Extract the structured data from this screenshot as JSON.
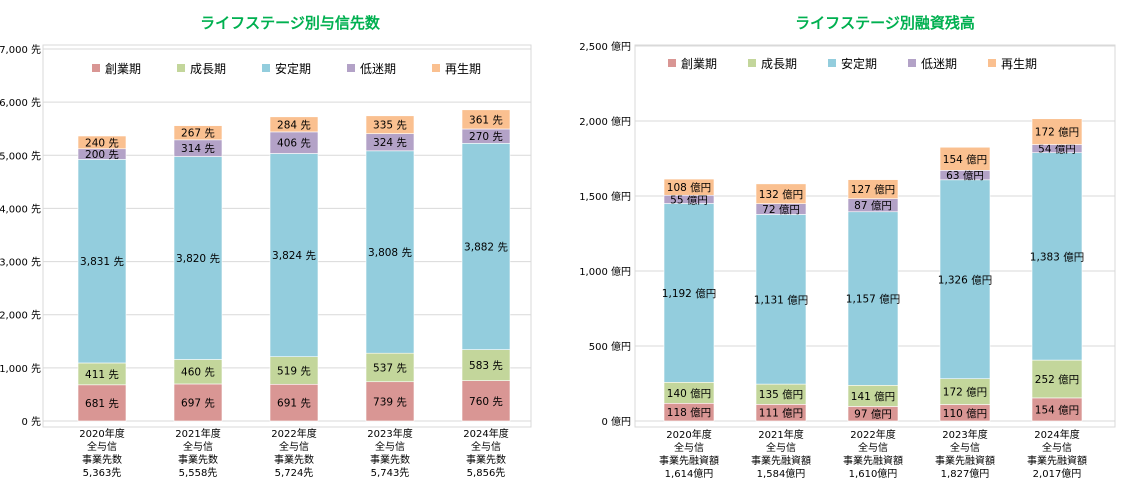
{
  "colors": {
    "start": "#D99694",
    "growth": "#C3D69B",
    "stable": "#93CDDD",
    "decline": "#B3A2C7",
    "regen": "#FAC090",
    "title": "#00B050",
    "grid": "#D9D9D9",
    "frame": "#D9D9D9",
    "text": "#000000"
  },
  "chart_data": [
    {
      "type": "bar",
      "stacked": true,
      "title": "ライフステージ別与信先数",
      "categories": [
        [
          "2020年度",
          "全与信",
          "事業先数",
          "5,363先"
        ],
        [
          "2021年度",
          "全与信",
          "事業先数",
          "5,558先"
        ],
        [
          "2022年度",
          "全与信",
          "事業先数",
          "5,724先"
        ],
        [
          "2023年度",
          "全与信",
          "事業先数",
          "5,743先"
        ],
        [
          "2024年度",
          "全与信",
          "事業先数",
          "5,856先"
        ]
      ],
      "series": [
        {
          "name": "創業期",
          "color_key": "start",
          "values": [
            681,
            697,
            691,
            739,
            760
          ],
          "labels": [
            "681 先",
            "697 先",
            "691 先",
            "739 先",
            "760 先"
          ]
        },
        {
          "name": "成長期",
          "color_key": "growth",
          "values": [
            411,
            460,
            519,
            537,
            583
          ],
          "labels": [
            "411 先",
            "460 先",
            "519 先",
            "537 先",
            "583 先"
          ]
        },
        {
          "name": "安定期",
          "color_key": "stable",
          "values": [
            3831,
            3820,
            3824,
            3808,
            3882
          ],
          "labels": [
            "3,831 先",
            "3,820 先",
            "3,824 先",
            "3,808 先",
            "3,882 先"
          ]
        },
        {
          "name": "低迷期",
          "color_key": "decline",
          "values": [
            200,
            314,
            406,
            324,
            270
          ],
          "labels": [
            "200 先",
            "314 先",
            "406 先",
            "324 先",
            "270 先"
          ]
        },
        {
          "name": "再生期",
          "color_key": "regen",
          "values": [
            240,
            267,
            284,
            335,
            361
          ],
          "labels": [
            "240 先",
            "267 先",
            "284 先",
            "335 先",
            "361 先"
          ]
        }
      ],
      "ylim": [
        0,
        7000
      ],
      "yticks": [
        0,
        1000,
        2000,
        3000,
        4000,
        5000,
        6000,
        7000
      ],
      "ytick_labels": [
        "0 先",
        "1,000 先",
        "2,000 先",
        "3,000 先",
        "4,000 先",
        "5,000 先",
        "6,000 先",
        "7,000 先"
      ],
      "grid": true,
      "legend_position": "top"
    },
    {
      "type": "bar",
      "stacked": true,
      "title": "ライフステージ別融資残高",
      "categories": [
        [
          "2020年度",
          "全与信",
          "事業先融資額",
          "1,614億円"
        ],
        [
          "2021年度",
          "全与信",
          "事業先融資額",
          "1,584億円"
        ],
        [
          "2022年度",
          "全与信",
          "事業先融資額",
          "1,610億円"
        ],
        [
          "2023年度",
          "全与信",
          "事業先融資額",
          "1,827億円"
        ],
        [
          "2024年度",
          "全与信",
          "事業先融資額",
          "2,017億円"
        ]
      ],
      "series": [
        {
          "name": "創業期",
          "color_key": "start",
          "values": [
            118,
            111,
            97,
            110,
            154
          ],
          "labels": [
            "118 億円",
            "111 億円",
            "97 億円",
            "110 億円",
            "154 億円"
          ]
        },
        {
          "name": "成長期",
          "color_key": "growth",
          "values": [
            140,
            135,
            141,
            172,
            252
          ],
          "labels": [
            "140 億円",
            "135 億円",
            "141 億円",
            "172 億円",
            "252 億円"
          ]
        },
        {
          "name": "安定期",
          "color_key": "stable",
          "values": [
            1192,
            1131,
            1157,
            1326,
            1383
          ],
          "labels": [
            "1,192 億円",
            "1,131 億円",
            "1,157 億円",
            "1,326 億円",
            "1,383 億円"
          ]
        },
        {
          "name": "低迷期",
          "color_key": "decline",
          "values": [
            55,
            72,
            87,
            63,
            54
          ],
          "labels": [
            "55 億円",
            "72 億円",
            "87 億円",
            "63 億円",
            "54 億円"
          ]
        },
        {
          "name": "再生期",
          "color_key": "regen",
          "values": [
            108,
            132,
            127,
            154,
            172
          ],
          "labels": [
            "108 億円",
            "132 億円",
            "127 億円",
            "154 億円",
            "172 億円"
          ]
        }
      ],
      "ylim": [
        0,
        2500
      ],
      "yticks": [
        0,
        500,
        1000,
        1500,
        2000,
        2500
      ],
      "ytick_labels": [
        "0 億円",
        "500 億円",
        "1,000 億円",
        "1,500 億円",
        "2,000 億円",
        "2,500 億円"
      ],
      "grid": true,
      "legend_position": "top"
    }
  ]
}
